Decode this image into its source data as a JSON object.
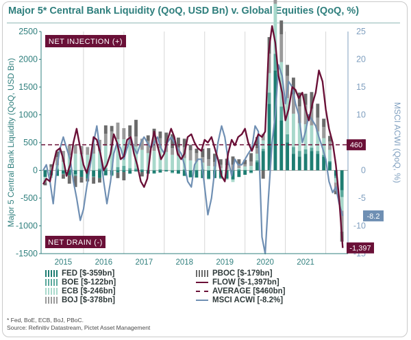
{
  "title": "Major 5* Central Bank Liquidity (QoQ, USD Bn) v. Global Equities (QoQ, %)",
  "footnote": "* Fed, BoE, ECB, BoJ, PBoC.",
  "source": "Source: Refinitiv Datastream, Pictet Asset Management",
  "colors": {
    "title": "#2f7f7d",
    "fed": "#1e7d72",
    "boe": "#5aa99c",
    "ecb": "#a8d8cb",
    "boj": "#9a9a9a",
    "pboc": "#6b6b6b",
    "flow": "#6a1037",
    "average": "#6a1037",
    "msci": "#6f8fb3",
    "badge": "#6a1037"
  },
  "annotations": {
    "net_injection": "NET INJECTION (+)",
    "net_drain": "NET DRAIN (-)",
    "average_value": "460",
    "flow_end": "-1,397",
    "msci_end": "-8.2"
  },
  "legend": [
    {
      "key": "fed",
      "label": "FED [$-359bn]",
      "style": "bars"
    },
    {
      "key": "boe",
      "label": "BOE [$-122bn]",
      "style": "bars"
    },
    {
      "key": "ecb",
      "label": "ECB [$-246bn]",
      "style": "bars"
    },
    {
      "key": "boj",
      "label": "BOJ [$-378bn]",
      "style": "bars"
    },
    {
      "key": "pboc",
      "label": "PBOC [$-179bn]",
      "style": "bars"
    },
    {
      "key": "flow",
      "label": "FLOW [$-1,397bn]",
      "style": "line"
    },
    {
      "key": "average",
      "label": "AVERAGE [$460bn]",
      "style": "dashed"
    },
    {
      "key": "msci",
      "label": "MSCI ACWI [-8.2%]",
      "style": "line"
    }
  ],
  "chart_data": {
    "type": "bar",
    "title": "Major 5* Central Bank Liquidity (QoQ, USD Bn) v. Global Equities (QoQ, %)",
    "ylabel": "Major 5 Central Bank Liquidity (QoQ, USD Bn)",
    "ylabel_right": "MSCI ACWI (QoQ, %)",
    "ylim": [
      -1500,
      2500
    ],
    "ylim_right": [
      -15,
      25
    ],
    "xlim": [
      2014.45,
      2022.05
    ],
    "yticks": [
      -1500,
      -1000,
      -500,
      0,
      500,
      1000,
      1500,
      2000,
      2500
    ],
    "yticks_right": [
      -15,
      -10,
      -5,
      0,
      5,
      10,
      15,
      20,
      25
    ],
    "xticks": [
      "2015",
      "2016",
      "2017",
      "2018",
      "2019",
      "2020",
      "2021"
    ],
    "x_tick_positions": [
      2015.0,
      2016.0,
      2017.0,
      2018.0,
      2019.0,
      2020.0,
      2021.0
    ],
    "average": 460,
    "grid": "vertical",
    "series": [
      {
        "name": "FLOW",
        "axis": "left",
        "x": [
          2014.5,
          2014.58,
          2014.67,
          2014.75,
          2014.83,
          2014.92,
          2015.0,
          2015.08,
          2015.17,
          2015.25,
          2015.33,
          2015.42,
          2015.5,
          2015.58,
          2015.67,
          2015.75,
          2015.83,
          2015.92,
          2016.0,
          2016.08,
          2016.17,
          2016.25,
          2016.33,
          2016.42,
          2016.5,
          2016.58,
          2016.67,
          2016.75,
          2016.83,
          2016.92,
          2017.0,
          2017.08,
          2017.17,
          2017.25,
          2017.33,
          2017.42,
          2017.5,
          2017.58,
          2017.67,
          2017.75,
          2017.83,
          2017.92,
          2018.0,
          2018.08,
          2018.17,
          2018.25,
          2018.33,
          2018.42,
          2018.5,
          2018.58,
          2018.67,
          2018.75,
          2018.83,
          2018.92,
          2019.0,
          2019.08,
          2019.17,
          2019.25,
          2019.33,
          2019.42,
          2019.5,
          2019.58,
          2019.67,
          2019.75,
          2019.83,
          2019.92,
          2020.0,
          2020.08,
          2020.17,
          2020.25,
          2020.33,
          2020.42,
          2020.5,
          2020.58,
          2020.67,
          2020.75,
          2020.83,
          2020.92,
          2021.0,
          2021.08,
          2021.17,
          2021.25,
          2021.33,
          2021.42,
          2021.5,
          2021.58,
          2021.67,
          2021.75,
          2021.83,
          2021.92
        ],
        "values": [
          -250,
          -150,
          -200,
          100,
          350,
          400,
          200,
          -100,
          100,
          500,
          750,
          400,
          100,
          -50,
          200,
          600,
          550,
          300,
          0,
          100,
          300,
          650,
          500,
          200,
          250,
          550,
          600,
          300,
          100,
          -200,
          -300,
          -150,
          400,
          700,
          450,
          200,
          300,
          550,
          750,
          600,
          300,
          200,
          300,
          600,
          650,
          500,
          400,
          350,
          550,
          500,
          600,
          400,
          200,
          -100,
          -200,
          300,
          550,
          450,
          600,
          650,
          750,
          500,
          350,
          500,
          650,
          600,
          700,
          2100,
          2600,
          2300,
          1700,
          1400,
          900,
          1100,
          1500,
          1450,
          1300,
          1400,
          1100,
          900,
          1200,
          1400,
          1800,
          1600,
          1100,
          750,
          500,
          100,
          -500,
          -1397
        ]
      },
      {
        "name": "MSCI ACWI",
        "axis": "right",
        "x": [
          2014.5,
          2014.58,
          2014.67,
          2014.75,
          2014.83,
          2014.92,
          2015.0,
          2015.08,
          2015.17,
          2015.25,
          2015.33,
          2015.42,
          2015.5,
          2015.58,
          2015.67,
          2015.75,
          2015.83,
          2015.92,
          2016.0,
          2016.08,
          2016.17,
          2016.25,
          2016.33,
          2016.42,
          2016.5,
          2016.58,
          2016.67,
          2016.75,
          2016.83,
          2016.92,
          2017.0,
          2017.08,
          2017.17,
          2017.25,
          2017.33,
          2017.42,
          2017.5,
          2017.58,
          2017.67,
          2017.75,
          2017.83,
          2017.92,
          2018.0,
          2018.08,
          2018.17,
          2018.25,
          2018.33,
          2018.42,
          2018.5,
          2018.58,
          2018.67,
          2018.75,
          2018.83,
          2018.92,
          2019.0,
          2019.08,
          2019.17,
          2019.25,
          2019.33,
          2019.42,
          2019.5,
          2019.58,
          2019.67,
          2019.75,
          2019.83,
          2019.92,
          2020.0,
          2020.08,
          2020.17,
          2020.25,
          2020.33,
          2020.42,
          2020.5,
          2020.58,
          2020.67,
          2020.75,
          2020.83,
          2020.92,
          2021.0,
          2021.08,
          2021.17,
          2021.25,
          2021.33,
          2021.42,
          2021.5,
          2021.58,
          2021.67,
          2021.75,
          2021.83,
          2021.92
        ],
        "values": [
          0,
          1,
          -2,
          -6,
          0,
          4,
          6,
          4,
          2,
          -2,
          -5,
          -9,
          -7,
          -3,
          1,
          5,
          8,
          3,
          -2,
          -6,
          -2,
          3,
          5,
          4,
          2,
          4,
          6,
          4,
          3,
          5,
          6,
          5,
          4,
          5,
          6,
          4,
          3,
          5,
          6,
          5,
          4,
          3,
          1,
          -2,
          -3,
          1,
          2,
          2,
          -3,
          -8,
          -5,
          0,
          5,
          8,
          6,
          2,
          -1,
          2,
          1,
          1,
          2,
          3,
          4,
          8,
          7,
          -12,
          -15,
          -5,
          5,
          10,
          19,
          17,
          12,
          16,
          15,
          12,
          10,
          5,
          7,
          10,
          9,
          8,
          6,
          4,
          2,
          -2,
          -4,
          -3,
          -6,
          -8.2
        ]
      },
      {
        "name": "FED",
        "axis": "left",
        "x": [
          2014.55,
          2014.7,
          2014.85,
          2015.0,
          2015.15,
          2015.3,
          2015.45,
          2015.6,
          2015.75,
          2015.9,
          2016.05,
          2016.2,
          2016.35,
          2016.5,
          2016.65,
          2016.8,
          2016.95,
          2017.1,
          2017.25,
          2017.4,
          2017.55,
          2017.7,
          2017.85,
          2018.0,
          2018.15,
          2018.3,
          2018.45,
          2018.6,
          2018.75,
          2018.9,
          2019.05,
          2019.2,
          2019.35,
          2019.5,
          2019.65,
          2019.8,
          2019.95,
          2020.1,
          2020.25,
          2020.4,
          2020.55,
          2020.7,
          2020.85,
          2021.0,
          2021.15,
          2021.3,
          2021.45,
          2021.6,
          2021.75,
          2021.9
        ],
        "values": [
          -120,
          -80,
          -100,
          -60,
          -90,
          -70,
          -120,
          -150,
          -110,
          -140,
          -90,
          -80,
          -40,
          -30,
          -60,
          -20,
          -30,
          -60,
          -50,
          -40,
          -20,
          -30,
          -60,
          -100,
          -120,
          -130,
          -140,
          -150,
          -140,
          -130,
          -150,
          -160,
          -120,
          -80,
          -40,
          150,
          350,
          1200,
          1800,
          900,
          500,
          300,
          250,
          300,
          350,
          300,
          250,
          150,
          -100,
          -359
        ]
      },
      {
        "name": "BOE",
        "axis": "left",
        "x": [
          2014.55,
          2014.7,
          2014.85,
          2015.0,
          2015.15,
          2015.3,
          2015.45,
          2015.6,
          2015.75,
          2015.9,
          2016.05,
          2016.2,
          2016.35,
          2016.5,
          2016.65,
          2016.8,
          2016.95,
          2017.1,
          2017.25,
          2017.4,
          2017.55,
          2017.7,
          2017.85,
          2018.0,
          2018.15,
          2018.3,
          2018.45,
          2018.6,
          2018.75,
          2018.9,
          2019.05,
          2019.2,
          2019.35,
          2019.5,
          2019.65,
          2019.8,
          2019.95,
          2020.1,
          2020.25,
          2020.4,
          2020.55,
          2020.7,
          2020.85,
          2021.0,
          2021.15,
          2021.3,
          2021.45,
          2021.6,
          2021.75,
          2021.9
        ],
        "values": [
          10,
          -20,
          30,
          -10,
          20,
          -30,
          10,
          20,
          -10,
          30,
          40,
          -20,
          60,
          80,
          40,
          30,
          20,
          10,
          -10,
          20,
          10,
          -20,
          10,
          20,
          -10,
          10,
          20,
          -10,
          10,
          -20,
          10,
          -10,
          20,
          10,
          -10,
          30,
          40,
          200,
          300,
          250,
          150,
          120,
          100,
          80,
          60,
          50,
          30,
          20,
          -40,
          -122
        ]
      },
      {
        "name": "ECB",
        "axis": "left",
        "x": [
          2014.55,
          2014.7,
          2014.85,
          2015.0,
          2015.15,
          2015.3,
          2015.45,
          2015.6,
          2015.75,
          2015.9,
          2016.05,
          2016.2,
          2016.35,
          2016.5,
          2016.65,
          2016.8,
          2016.95,
          2017.1,
          2017.25,
          2017.4,
          2017.55,
          2017.7,
          2017.85,
          2018.0,
          2018.15,
          2018.3,
          2018.45,
          2018.6,
          2018.75,
          2018.9,
          2019.05,
          2019.2,
          2019.35,
          2019.5,
          2019.65,
          2019.8,
          2019.95,
          2020.1,
          2020.25,
          2020.4,
          2020.55,
          2020.7,
          2020.85,
          2021.0,
          2021.15,
          2021.3,
          2021.45,
          2021.6,
          2021.75,
          2021.9
        ],
        "values": [
          -60,
          -40,
          60,
          150,
          250,
          300,
          280,
          260,
          300,
          320,
          400,
          450,
          500,
          480,
          420,
          400,
          350,
          300,
          350,
          380,
          320,
          280,
          250,
          200,
          180,
          150,
          120,
          80,
          60,
          40,
          -20,
          -40,
          20,
          60,
          80,
          120,
          150,
          350,
          900,
          800,
          650,
          600,
          500,
          450,
          400,
          350,
          300,
          200,
          -80,
          -246
        ]
      },
      {
        "name": "BOJ",
        "axis": "left",
        "x": [
          2014.55,
          2014.7,
          2014.85,
          2015.0,
          2015.15,
          2015.3,
          2015.45,
          2015.6,
          2015.75,
          2015.9,
          2016.05,
          2016.2,
          2016.35,
          2016.5,
          2016.65,
          2016.8,
          2016.95,
          2017.1,
          2017.25,
          2017.4,
          2017.55,
          2017.7,
          2017.85,
          2018.0,
          2018.15,
          2018.3,
          2018.45,
          2018.6,
          2018.75,
          2018.9,
          2019.05,
          2019.2,
          2019.35,
          2019.5,
          2019.65,
          2019.8,
          2019.95,
          2020.1,
          2020.25,
          2020.4,
          2020.55,
          2020.7,
          2020.85,
          2021.0,
          2021.15,
          2021.3,
          2021.45,
          2021.6,
          2021.75,
          2021.9
        ],
        "values": [
          -40,
          60,
          150,
          200,
          180,
          160,
          150,
          140,
          180,
          200,
          220,
          250,
          300,
          200,
          150,
          180,
          200,
          220,
          250,
          180,
          150,
          120,
          150,
          200,
          180,
          150,
          100,
          120,
          80,
          60,
          80,
          100,
          60,
          40,
          80,
          100,
          120,
          350,
          600,
          500,
          400,
          350,
          300,
          350,
          300,
          250,
          200,
          150,
          -150,
          -378
        ]
      },
      {
        "name": "PBOC",
        "axis": "left",
        "x": [
          2014.55,
          2014.7,
          2014.85,
          2015.0,
          2015.15,
          2015.3,
          2015.45,
          2015.6,
          2015.75,
          2015.9,
          2016.05,
          2016.2,
          2016.35,
          2016.5,
          2016.65,
          2016.8,
          2016.95,
          2017.1,
          2017.25,
          2017.4,
          2017.55,
          2017.7,
          2017.85,
          2018.0,
          2018.15,
          2018.3,
          2018.45,
          2018.6,
          2018.75,
          2018.9,
          2019.05,
          2019.2,
          2019.35,
          2019.5,
          2019.65,
          2019.8,
          2019.95,
          2020.1,
          2020.25,
          2020.4,
          2020.55,
          2020.7,
          2020.85,
          2021.0,
          2021.15,
          2021.3,
          2021.45,
          2021.6,
          2021.75,
          2021.9
        ],
        "values": [
          -50,
          50,
          100,
          -80,
          -150,
          -200,
          -100,
          -50,
          -120,
          -80,
          150,
          100,
          -100,
          -150,
          200,
          300,
          -80,
          100,
          150,
          120,
          200,
          250,
          180,
          150,
          100,
          80,
          150,
          200,
          150,
          100,
          120,
          150,
          100,
          80,
          150,
          200,
          -150,
          300,
          400,
          250,
          200,
          300,
          250,
          200,
          300,
          250,
          150,
          100,
          -60,
          -179
        ]
      }
    ]
  }
}
